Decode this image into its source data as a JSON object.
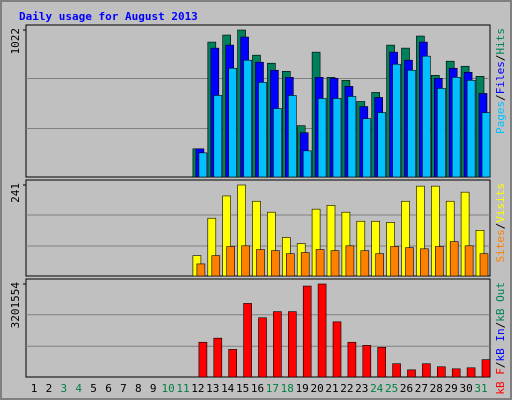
{
  "chart_data": [
    {
      "type": "bar",
      "title": "Daily usage for August 2013",
      "ylim": [
        0,
        1022
      ],
      "yticks": [
        1022
      ],
      "legend_separator": "/",
      "series": [
        {
          "name": "Hits",
          "color": "#00805c",
          "values": [
            null,
            null,
            null,
            null,
            null,
            null,
            null,
            null,
            null,
            null,
            0,
            196,
            938,
            987,
            1022,
            847,
            791,
            735,
            357,
            868,
            693,
            672,
            525,
            588,
            917,
            896,
            980,
            707,
            805,
            770,
            700
          ]
        },
        {
          "name": "Files",
          "color": "#0000ff",
          "values": [
            null,
            null,
            null,
            null,
            null,
            null,
            null,
            null,
            null,
            null,
            0,
            196,
            896,
            917,
            973,
            798,
            742,
            693,
            308,
            693,
            686,
            630,
            490,
            553,
            868,
            812,
            938,
            686,
            756,
            728,
            581
          ]
        },
        {
          "name": "Pages",
          "color": "#00c0ff",
          "values": [
            null,
            null,
            null,
            null,
            null,
            null,
            null,
            null,
            null,
            null,
            0,
            168,
            567,
            756,
            812,
            658,
            476,
            567,
            182,
            546,
            546,
            560,
            406,
            448,
            784,
            742,
            840,
            616,
            693,
            672,
            448
          ]
        }
      ]
    },
    {
      "type": "bar",
      "ylim": [
        0,
        241
      ],
      "yticks": [
        241
      ],
      "legend_separator": "/",
      "series": [
        {
          "name": "Visits",
          "color": "#ffff00",
          "values": [
            null,
            null,
            null,
            null,
            null,
            null,
            null,
            null,
            null,
            null,
            0,
            54,
            153,
            212,
            241,
            198,
            169,
            102,
            86,
            177,
            187,
            169,
            145,
            145,
            142,
            198,
            238,
            238,
            198,
            222,
            121
          ]
        },
        {
          "name": "Sites",
          "color": "#ff8000",
          "values": [
            null,
            null,
            null,
            null,
            null,
            null,
            null,
            null,
            null,
            null,
            0,
            32,
            54,
            78,
            80,
            70,
            67,
            59,
            62,
            70,
            67,
            80,
            67,
            59,
            78,
            75,
            72,
            78,
            91,
            80,
            59
          ]
        }
      ]
    },
    {
      "type": "bar",
      "ylim": [
        0,
        3201554
      ],
      "yticks": [
        3201554
      ],
      "legend_separator": "/",
      "categories": [
        "1",
        "2",
        "3",
        "4",
        "5",
        "6",
        "7",
        "8",
        "9",
        "10",
        "11",
        "12",
        "13",
        "14",
        "15",
        "16",
        "17",
        "18",
        "19",
        "20",
        "21",
        "22",
        "23",
        "24",
        "25",
        "26",
        "27",
        "28",
        "29",
        "30",
        "31"
      ],
      "category_colors": [
        "#000000",
        "#000000",
        "#008040",
        "#008040",
        "#000000",
        "#000000",
        "#000000",
        "#000000",
        "#000000",
        "#008040",
        "#008040",
        "#000000",
        "#000000",
        "#000000",
        "#000000",
        "#000000",
        "#008040",
        "#008040",
        "#000000",
        "#000000",
        "#000000",
        "#000000",
        "#000000",
        "#008040",
        "#008040",
        "#000000",
        "#000000",
        "#000000",
        "#000000",
        "#000000",
        "#008040"
      ],
      "series": [
        {
          "name": "kB Out",
          "color": "#00805c",
          "values": [
            null,
            null,
            null,
            null,
            null,
            null,
            null,
            null,
            null,
            null,
            0,
            0,
            0,
            0,
            0,
            0,
            0,
            0,
            0,
            0,
            0,
            0,
            0,
            0,
            0,
            0,
            0,
            0,
            0,
            0,
            0
          ]
        },
        {
          "name": "kB In",
          "color": "#0000ff",
          "values": [
            null,
            null,
            null,
            null,
            null,
            null,
            null,
            null,
            null,
            null,
            0,
            0,
            0,
            0,
            0,
            0,
            0,
            0,
            0,
            0,
            0,
            0,
            0,
            0,
            0,
            0,
            0,
            0,
            0,
            0,
            0
          ]
        },
        {
          "name": "kB F",
          "color": "#ff0000",
          "values": [
            null,
            null,
            null,
            null,
            null,
            null,
            null,
            null,
            null,
            null,
            0,
            1196000,
            1337000,
            950000,
            2533000,
            2040000,
            2251000,
            2251000,
            3131000,
            3201554,
            1900000,
            1196000,
            1090000,
            1020000,
            457000,
            246000,
            457000,
            352000,
            281000,
            317000,
            598000
          ]
        }
      ]
    }
  ]
}
